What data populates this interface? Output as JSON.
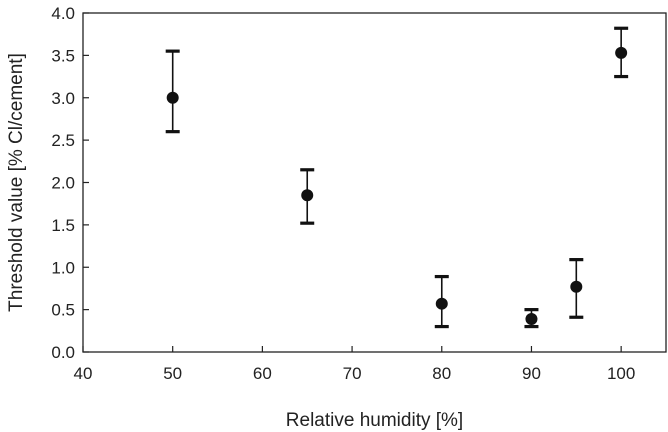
{
  "chart_data": {
    "type": "scatter",
    "title": "",
    "xlabel": "Relative humidity [%]",
    "ylabel": "Threshold value  [% Cl/cement]",
    "xlim": [
      40,
      105
    ],
    "ylim": [
      0,
      4.0
    ],
    "xticks": [
      "40",
      "50",
      "60",
      "70",
      "80",
      "90",
      "100"
    ],
    "yticks": [
      "0.0",
      "0.5",
      "1.0",
      "1.5",
      "2.0",
      "2.5",
      "3.0",
      "3.5",
      "4.0"
    ],
    "grid": false,
    "series": [
      {
        "points": [
          {
            "x": 50,
            "y": 3.0,
            "err_low": 2.6,
            "err_high": 3.55
          },
          {
            "x": 65,
            "y": 1.85,
            "err_low": 1.52,
            "err_high": 2.15
          },
          {
            "x": 80,
            "y": 0.57,
            "err_low": 0.3,
            "err_high": 0.89
          },
          {
            "x": 90,
            "y": 0.39,
            "err_low": 0.3,
            "err_high": 0.5
          },
          {
            "x": 95,
            "y": 0.77,
            "err_low": 0.41,
            "err_high": 1.09
          },
          {
            "x": 100,
            "y": 3.53,
            "err_low": 3.25,
            "err_high": 3.82
          }
        ]
      }
    ]
  }
}
